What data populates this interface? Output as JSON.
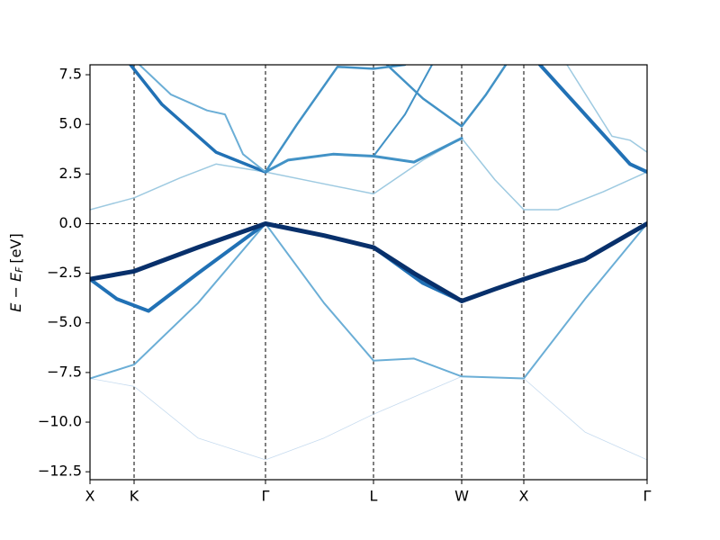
{
  "chart_data": {
    "type": "line",
    "ylabel": {
      "main": "E − E",
      "sub": "F",
      "unit": "[eV]"
    },
    "xlim": [
      0,
      6.19
    ],
    "ylim": [
      -12.9,
      8
    ],
    "xticks": [
      {
        "value": 0,
        "label": "X"
      },
      {
        "value": 0.49,
        "label": "K"
      },
      {
        "value": 1.95,
        "label": "Γ"
      },
      {
        "value": 3.15,
        "label": "L"
      },
      {
        "value": 4.13,
        "label": "W"
      },
      {
        "value": 4.82,
        "label": "X"
      },
      {
        "value": 6.19,
        "label": "Γ"
      }
    ],
    "yticks": [
      {
        "value": -12.5,
        "label": "−12.5"
      },
      {
        "value": -10,
        "label": "−10.0"
      },
      {
        "value": -7.5,
        "label": "−7.5"
      },
      {
        "value": -5,
        "label": "−5.0"
      },
      {
        "value": -2.5,
        "label": "−2.5"
      },
      {
        "value": 0,
        "label": "0.0"
      },
      {
        "value": 2.5,
        "label": "2.5"
      },
      {
        "value": 5,
        "label": "5.0"
      },
      {
        "value": 7.5,
        "label": "7.5"
      }
    ],
    "grid": true,
    "fermi_level": 0,
    "series": [
      {
        "color": "#c6dbef",
        "width": 0.8,
        "x": [
          0,
          0.49,
          1.2,
          1.95,
          2.6,
          3.15,
          4.13,
          4.82,
          5.5,
          6.19
        ],
        "values": [
          -7.8,
          -8.2,
          -10.8,
          -11.9,
          -10.8,
          -9.6,
          -7.7,
          -7.8,
          -10.5,
          -11.9
        ]
      },
      {
        "color": "#6baed6",
        "width": 2,
        "x": [
          0,
          0.49,
          1.2,
          1.95,
          2.6,
          3.15,
          3.6,
          4.13,
          4.82,
          5.5,
          6.19
        ],
        "values": [
          -7.8,
          -7.1,
          -4,
          0,
          -4,
          -6.9,
          -6.8,
          -7.7,
          -7.8,
          -3.8,
          0
        ]
      },
      {
        "color": "#2171b5",
        "width": 4,
        "x": [
          0,
          0.3,
          0.65,
          1.2,
          1.95,
          2.5,
          3.15,
          3.7,
          4.13
        ],
        "values": [
          -2.8,
          -3.8,
          -4.4,
          -2.5,
          0,
          -0.5,
          -1.2,
          -3.0,
          -3.9
        ]
      },
      {
        "color": "#08306b",
        "width": 5,
        "x": [
          0,
          0.49,
          1.2,
          1.95,
          2.6,
          3.15,
          3.6,
          4.13,
          4.5,
          4.82,
          5.5,
          6.19
        ],
        "values": [
          -2.8,
          -2.4,
          -1.2,
          0,
          -0.6,
          -1.2,
          -2.5,
          -3.9,
          -3.3,
          -2.8,
          -1.8,
          0
        ]
      },
      {
        "color": "#9ecae1",
        "width": 1.5,
        "x": [
          0,
          0.49,
          1.0,
          1.4,
          1.95,
          2.6,
          3.15,
          3.7,
          4.13,
          4.5,
          4.82,
          5.2,
          5.7,
          6.19
        ],
        "values": [
          0.7,
          1.3,
          2.3,
          3.0,
          2.6,
          2.0,
          1.5,
          3.2,
          4.3,
          2.2,
          0.7,
          0.7,
          1.6,
          2.6
        ]
      },
      {
        "color": "#4292c6",
        "width": 3,
        "x": [
          1.95,
          2.2,
          2.7,
          3.15,
          3.6,
          4.13
        ],
        "values": [
          2.6,
          3.2,
          3.5,
          3.4,
          3.1,
          4.3
        ]
      },
      {
        "color": "#2171b5",
        "width": 3.5,
        "x": [
          0.45,
          0.8,
          1.4,
          1.95
        ],
        "values": [
          8,
          6.0,
          3.6,
          2.6
        ]
      },
      {
        "color": "#6baed6",
        "width": 2,
        "x": [
          0.55,
          0.9,
          1.3,
          1.5,
          1.7,
          1.95
        ],
        "values": [
          8,
          6.5,
          5.7,
          5.5,
          3.5,
          2.6
        ]
      },
      {
        "color": "#4292c6",
        "width": 2.5,
        "x": [
          1.95,
          2.3,
          2.75,
          3.15,
          3.5
        ],
        "values": [
          2.6,
          5.0,
          7.9,
          7.8,
          8
        ]
      },
      {
        "color": "#4292c6",
        "width": 2.5,
        "x": [
          3.3,
          3.7,
          4.13,
          4.4,
          4.62
        ],
        "values": [
          8,
          6.3,
          4.9,
          6.5,
          8
        ]
      },
      {
        "color": "#4292c6",
        "width": 2,
        "x": [
          3.15,
          3.5,
          3.8
        ],
        "values": [
          3.4,
          5.5,
          8
        ]
      },
      {
        "color": "#2171b5",
        "width": 4,
        "x": [
          5.0,
          5.5,
          6.0,
          6.19
        ],
        "values": [
          8,
          5.5,
          3.0,
          2.6
        ]
      },
      {
        "color": "#9ecae1",
        "width": 1.5,
        "x": [
          5.3,
          5.8,
          6.0,
          6.19
        ],
        "values": [
          8,
          4.4,
          4.2,
          3.6
        ]
      }
    ]
  }
}
